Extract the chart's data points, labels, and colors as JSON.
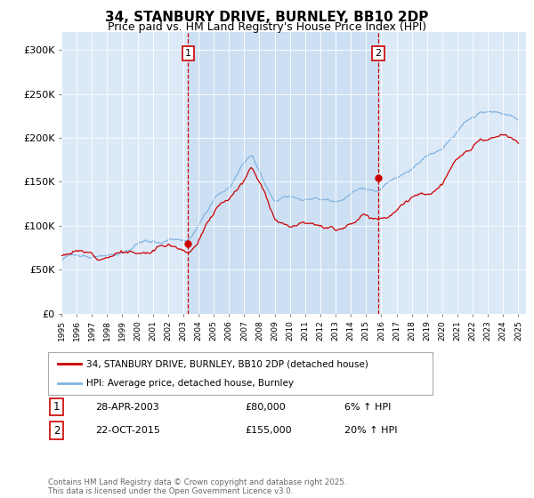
{
  "title": "34, STANBURY DRIVE, BURNLEY, BB10 2DP",
  "subtitle": "Price paid vs. HM Land Registry's House Price Index (HPI)",
  "ylim": [
    0,
    320000
  ],
  "yticks": [
    0,
    50000,
    100000,
    150000,
    200000,
    250000,
    300000
  ],
  "ytick_labels": [
    "£0",
    "£50K",
    "£100K",
    "£150K",
    "£200K",
    "£250K",
    "£300K"
  ],
  "background_color": "#ffffff",
  "plot_bg_color": "#dce9f7",
  "shade_color": "#c0d8f0",
  "hpi_color": "#7fb3e0",
  "price_color": "#cc0000",
  "vline1_x": 2003.32,
  "vline2_x": 2015.81,
  "dot1_x": 2003.32,
  "dot1_y": 80000,
  "dot2_x": 2015.81,
  "dot2_y": 155000,
  "annotation1": {
    "num": "1",
    "date": "28-APR-2003",
    "price": "£80,000",
    "hpi": "6% ↑ HPI"
  },
  "annotation2": {
    "num": "2",
    "date": "22-OCT-2015",
    "price": "£155,000",
    "hpi": "20% ↑ HPI"
  },
  "legend_label_price": "34, STANBURY DRIVE, BURNLEY, BB10 2DP (detached house)",
  "legend_label_hpi": "HPI: Average price, detached house, Burnley",
  "footer": "Contains HM Land Registry data © Crown copyright and database right 2025.\nThis data is licensed under the Open Government Licence v3.0.",
  "xmin": 1995,
  "xmax": 2025.5,
  "title_fontsize": 11,
  "subtitle_fontsize": 9
}
